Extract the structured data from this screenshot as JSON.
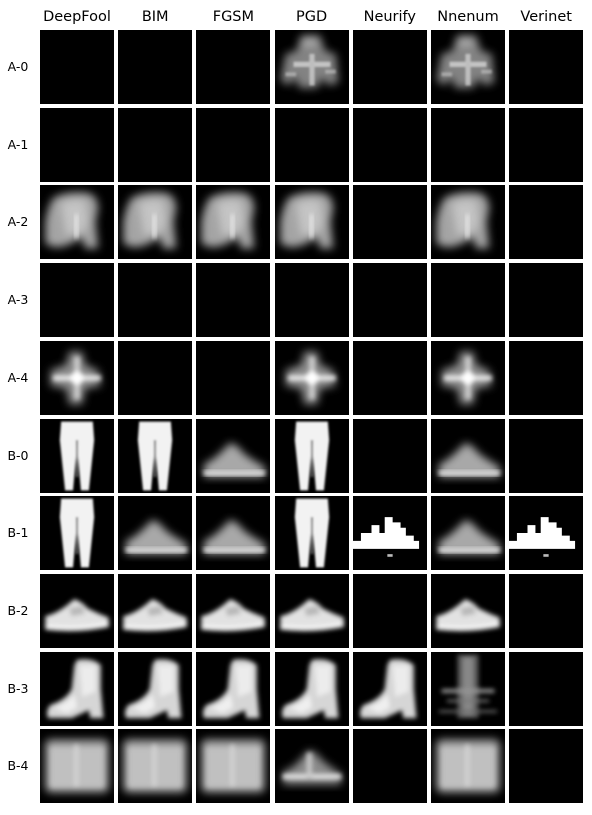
{
  "columns": [
    "DeepFool",
    "BIM",
    "FGSM",
    "PGD",
    "Neurify",
    "Nnenum",
    "Verinet"
  ],
  "rows": [
    {
      "label": "A-0",
      "cells": [
        "blank",
        "blank",
        "blank",
        "shirt-noisy",
        "blank",
        "shirt-noisy",
        "blank"
      ]
    },
    {
      "label": "A-1",
      "cells": [
        "blank",
        "blank",
        "blank",
        "blank",
        "blank",
        "blank",
        "blank"
      ]
    },
    {
      "label": "A-2",
      "cells": [
        "boot-blur",
        "boot-blur",
        "boot-blur",
        "boot-blur",
        "blank",
        "boot-blur",
        "blank"
      ]
    },
    {
      "label": "A-3",
      "cells": [
        "blank",
        "blank",
        "blank",
        "blank",
        "blank",
        "blank",
        "blank"
      ]
    },
    {
      "label": "A-4",
      "cells": [
        "cross-blob",
        "blank",
        "blank",
        "cross-blob",
        "blank",
        "cross-blob",
        "blank"
      ]
    },
    {
      "label": "B-0",
      "cells": [
        "trousers",
        "trousers",
        "sneaker-blur",
        "trousers",
        "blank",
        "sneaker-blur",
        "blank"
      ]
    },
    {
      "label": "B-1",
      "cells": [
        "trousers",
        "sneaker-blur",
        "sneaker-blur",
        "trousers",
        "blocky-white",
        "sneaker-blur",
        "blocky-white"
      ]
    },
    {
      "label": "B-2",
      "cells": [
        "sneaker-bright",
        "sneaker-bright",
        "sneaker-bright",
        "sneaker-bright",
        "blank",
        "sneaker-bright",
        "blank"
      ]
    },
    {
      "label": "B-3",
      "cells": [
        "ankle-boot",
        "ankle-boot",
        "ankle-boot",
        "ankle-boot",
        "ankle-boot",
        "vertical-noisy",
        "blank"
      ]
    },
    {
      "label": "B-4",
      "cells": [
        "bag-grey",
        "bag-grey",
        "bag-grey",
        "sneaker-noisy",
        "blank",
        "bag-grey",
        "blank"
      ]
    }
  ]
}
